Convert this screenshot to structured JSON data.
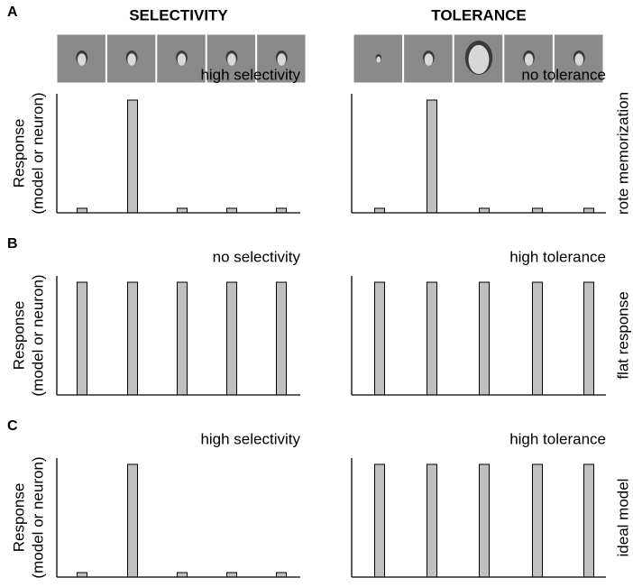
{
  "chart_data": [
    {
      "type": "bar",
      "panel": "A",
      "column_title": "SELECTIVITY",
      "ylabel": [
        "Response",
        "(model or neuron)"
      ],
      "annotation": "high selectivity",
      "color": "#c0c0c0",
      "values": [
        0.04,
        1,
        0.04,
        0.04,
        0.04
      ]
    },
    {
      "type": "bar",
      "column_title": "TOLERANCE",
      "annotation": "no tolerance",
      "side_label": "rote memorization",
      "color": "#c0c0c0",
      "values": [
        0.04,
        1,
        0.04,
        0.04,
        0.04
      ]
    },
    {
      "type": "bar",
      "panel": "B",
      "ylabel": [
        "Response",
        "(model or neuron)"
      ],
      "annotation": "no selectivity",
      "color": "#c0c0c0",
      "values": [
        1,
        1,
        1,
        1,
        1
      ]
    },
    {
      "type": "bar",
      "annotation": "high tolerance",
      "side_label": "flat response",
      "color": "#c0c0c0",
      "values": [
        1,
        1,
        1,
        1,
        1
      ]
    },
    {
      "type": "bar",
      "panel": "C",
      "ylabel": [
        "Response",
        "(model or neuron)"
      ],
      "annotation": "high selectivity",
      "color": "#c0c0c0",
      "values": [
        0.04,
        1,
        0.04,
        0.04,
        0.04
      ]
    },
    {
      "type": "bar",
      "annotation": "high tolerance",
      "side_label": "ideal model",
      "color": "#c0c0c0",
      "values": [
        1,
        1,
        1,
        1,
        1
      ]
    }
  ]
}
